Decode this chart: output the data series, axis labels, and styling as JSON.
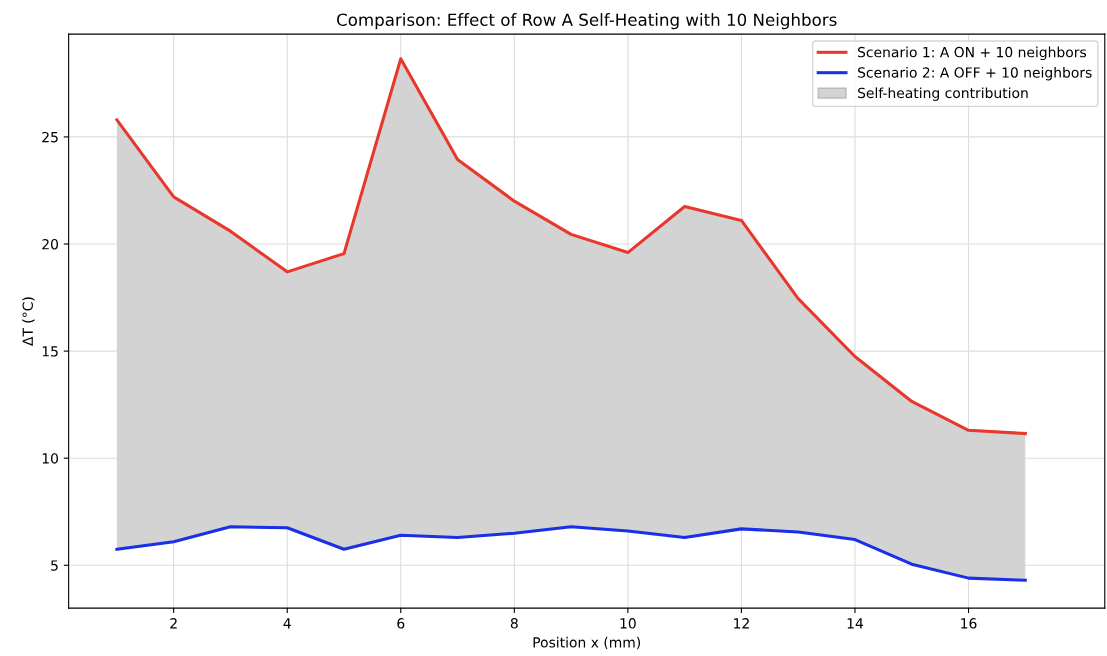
{
  "chart_data": {
    "type": "line",
    "title": "Comparison: Effect of Row A Self-Heating with 10 Neighbors",
    "xlabel": "Position x (mm)",
    "ylabel": "ΔT (°C)",
    "x": [
      1,
      2,
      3,
      4,
      5,
      6,
      7,
      8,
      9,
      10,
      11,
      12,
      13,
      14,
      15,
      16,
      17
    ],
    "series": [
      {
        "name": "Scenario 1: A ON + 10 neighbors",
        "color": "#e8372c",
        "values": [
          25.8,
          22.2,
          20.6,
          18.7,
          19.55,
          28.65,
          23.95,
          22.0,
          20.45,
          19.6,
          21.75,
          21.1,
          17.45,
          14.75,
          12.65,
          11.3,
          11.15
        ],
        "lower": [
          5.75,
          6.1,
          6.8,
          6.75,
          5.75,
          6.4,
          6.3,
          6.5,
          6.8,
          6.6,
          6.3,
          6.7,
          6.55,
          6.2,
          5.05,
          4.4,
          4.3
        ],
        "upper": [
          25.8,
          22.2,
          20.6,
          18.7,
          19.55,
          28.65,
          23.95,
          22.0,
          20.45,
          19.6,
          21.75,
          21.1,
          17.45,
          14.75,
          12.65,
          11.3,
          11.15
        ]
      },
      {
        "name": "Scenario 2: A OFF + 10 neighbors",
        "color": "#1a2fe8",
        "values": [
          5.75,
          6.1,
          6.8,
          6.75,
          5.75,
          6.4,
          6.3,
          6.5,
          6.8,
          6.6,
          6.3,
          6.7,
          6.55,
          6.2,
          5.05,
          4.4,
          4.3
        ]
      }
    ],
    "annotations": [
      "Self-heating contribution"
    ],
    "xlim": [
      0.15,
      18.4
    ],
    "xticks": [
      2,
      4,
      6,
      8,
      10,
      12,
      14,
      16
    ],
    "ylim": [
      3.0,
      29.8
    ],
    "yticks": [
      5,
      10,
      15,
      20,
      25
    ],
    "grid": true,
    "legend": "top right"
  }
}
